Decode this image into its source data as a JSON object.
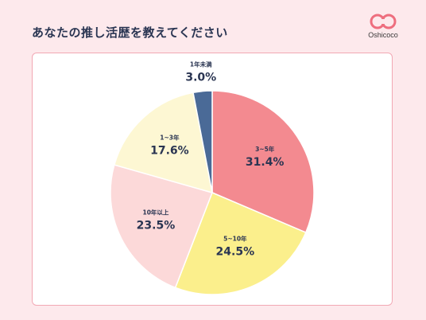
{
  "header": {
    "title": "あなたの推し活歴を教えてください",
    "brand": "Oshicoco"
  },
  "colors": {
    "background": "#fde9ec",
    "card_border": "#f2a8b4",
    "text": "#2a3552",
    "logo": "#ee6e7e"
  },
  "chart_data": {
    "type": "pie",
    "title": "あなたの推し活歴を教えてください",
    "start_angle_deg": 0,
    "direction": "clockwise",
    "slices": [
      {
        "label": "3~5年",
        "value": 31.4,
        "display": "31.4%",
        "color": "#f38a90"
      },
      {
        "label": "5~10年",
        "value": 24.5,
        "display": "24.5%",
        "color": "#fbef8c"
      },
      {
        "label": "10年以上",
        "value": 23.5,
        "display": "23.5%",
        "color": "#fcd9d9"
      },
      {
        "label": "1~3年",
        "value": 17.6,
        "display": "17.6%",
        "color": "#fdf7d3"
      },
      {
        "label": "1年未満",
        "value": 3.0,
        "display": "3.0%",
        "color": "#4a6a97"
      }
    ]
  }
}
